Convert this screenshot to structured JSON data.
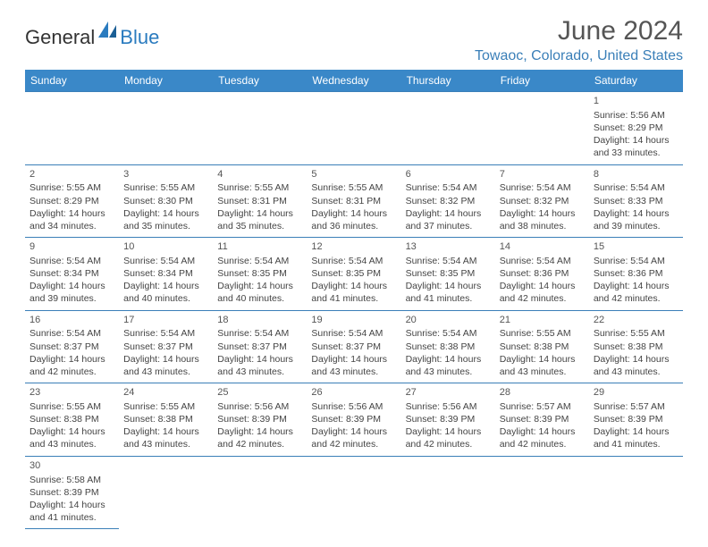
{
  "logo": {
    "text1": "General",
    "text2": "Blue"
  },
  "title": "June 2024",
  "location": "Towaoc, Colorado, United States",
  "day_headers": [
    "Sunday",
    "Monday",
    "Tuesday",
    "Wednesday",
    "Thursday",
    "Friday",
    "Saturday"
  ],
  "colors": {
    "header_bg": "#3a88c8",
    "header_fg": "#ffffff",
    "accent": "#3a7fb8",
    "text": "#444444",
    "title": "#555555"
  },
  "weeks": [
    [
      null,
      null,
      null,
      null,
      null,
      null,
      {
        "n": "1",
        "sr": "Sunrise: 5:56 AM",
        "ss": "Sunset: 8:29 PM",
        "d1": "Daylight: 14 hours",
        "d2": "and 33 minutes."
      }
    ],
    [
      {
        "n": "2",
        "sr": "Sunrise: 5:55 AM",
        "ss": "Sunset: 8:29 PM",
        "d1": "Daylight: 14 hours",
        "d2": "and 34 minutes."
      },
      {
        "n": "3",
        "sr": "Sunrise: 5:55 AM",
        "ss": "Sunset: 8:30 PM",
        "d1": "Daylight: 14 hours",
        "d2": "and 35 minutes."
      },
      {
        "n": "4",
        "sr": "Sunrise: 5:55 AM",
        "ss": "Sunset: 8:31 PM",
        "d1": "Daylight: 14 hours",
        "d2": "and 35 minutes."
      },
      {
        "n": "5",
        "sr": "Sunrise: 5:55 AM",
        "ss": "Sunset: 8:31 PM",
        "d1": "Daylight: 14 hours",
        "d2": "and 36 minutes."
      },
      {
        "n": "6",
        "sr": "Sunrise: 5:54 AM",
        "ss": "Sunset: 8:32 PM",
        "d1": "Daylight: 14 hours",
        "d2": "and 37 minutes."
      },
      {
        "n": "7",
        "sr": "Sunrise: 5:54 AM",
        "ss": "Sunset: 8:32 PM",
        "d1": "Daylight: 14 hours",
        "d2": "and 38 minutes."
      },
      {
        "n": "8",
        "sr": "Sunrise: 5:54 AM",
        "ss": "Sunset: 8:33 PM",
        "d1": "Daylight: 14 hours",
        "d2": "and 39 minutes."
      }
    ],
    [
      {
        "n": "9",
        "sr": "Sunrise: 5:54 AM",
        "ss": "Sunset: 8:34 PM",
        "d1": "Daylight: 14 hours",
        "d2": "and 39 minutes."
      },
      {
        "n": "10",
        "sr": "Sunrise: 5:54 AM",
        "ss": "Sunset: 8:34 PM",
        "d1": "Daylight: 14 hours",
        "d2": "and 40 minutes."
      },
      {
        "n": "11",
        "sr": "Sunrise: 5:54 AM",
        "ss": "Sunset: 8:35 PM",
        "d1": "Daylight: 14 hours",
        "d2": "and 40 minutes."
      },
      {
        "n": "12",
        "sr": "Sunrise: 5:54 AM",
        "ss": "Sunset: 8:35 PM",
        "d1": "Daylight: 14 hours",
        "d2": "and 41 minutes."
      },
      {
        "n": "13",
        "sr": "Sunrise: 5:54 AM",
        "ss": "Sunset: 8:35 PM",
        "d1": "Daylight: 14 hours",
        "d2": "and 41 minutes."
      },
      {
        "n": "14",
        "sr": "Sunrise: 5:54 AM",
        "ss": "Sunset: 8:36 PM",
        "d1": "Daylight: 14 hours",
        "d2": "and 42 minutes."
      },
      {
        "n": "15",
        "sr": "Sunrise: 5:54 AM",
        "ss": "Sunset: 8:36 PM",
        "d1": "Daylight: 14 hours",
        "d2": "and 42 minutes."
      }
    ],
    [
      {
        "n": "16",
        "sr": "Sunrise: 5:54 AM",
        "ss": "Sunset: 8:37 PM",
        "d1": "Daylight: 14 hours",
        "d2": "and 42 minutes."
      },
      {
        "n": "17",
        "sr": "Sunrise: 5:54 AM",
        "ss": "Sunset: 8:37 PM",
        "d1": "Daylight: 14 hours",
        "d2": "and 43 minutes."
      },
      {
        "n": "18",
        "sr": "Sunrise: 5:54 AM",
        "ss": "Sunset: 8:37 PM",
        "d1": "Daylight: 14 hours",
        "d2": "and 43 minutes."
      },
      {
        "n": "19",
        "sr": "Sunrise: 5:54 AM",
        "ss": "Sunset: 8:37 PM",
        "d1": "Daylight: 14 hours",
        "d2": "and 43 minutes."
      },
      {
        "n": "20",
        "sr": "Sunrise: 5:54 AM",
        "ss": "Sunset: 8:38 PM",
        "d1": "Daylight: 14 hours",
        "d2": "and 43 minutes."
      },
      {
        "n": "21",
        "sr": "Sunrise: 5:55 AM",
        "ss": "Sunset: 8:38 PM",
        "d1": "Daylight: 14 hours",
        "d2": "and 43 minutes."
      },
      {
        "n": "22",
        "sr": "Sunrise: 5:55 AM",
        "ss": "Sunset: 8:38 PM",
        "d1": "Daylight: 14 hours",
        "d2": "and 43 minutes."
      }
    ],
    [
      {
        "n": "23",
        "sr": "Sunrise: 5:55 AM",
        "ss": "Sunset: 8:38 PM",
        "d1": "Daylight: 14 hours",
        "d2": "and 43 minutes."
      },
      {
        "n": "24",
        "sr": "Sunrise: 5:55 AM",
        "ss": "Sunset: 8:38 PM",
        "d1": "Daylight: 14 hours",
        "d2": "and 43 minutes."
      },
      {
        "n": "25",
        "sr": "Sunrise: 5:56 AM",
        "ss": "Sunset: 8:39 PM",
        "d1": "Daylight: 14 hours",
        "d2": "and 42 minutes."
      },
      {
        "n": "26",
        "sr": "Sunrise: 5:56 AM",
        "ss": "Sunset: 8:39 PM",
        "d1": "Daylight: 14 hours",
        "d2": "and 42 minutes."
      },
      {
        "n": "27",
        "sr": "Sunrise: 5:56 AM",
        "ss": "Sunset: 8:39 PM",
        "d1": "Daylight: 14 hours",
        "d2": "and 42 minutes."
      },
      {
        "n": "28",
        "sr": "Sunrise: 5:57 AM",
        "ss": "Sunset: 8:39 PM",
        "d1": "Daylight: 14 hours",
        "d2": "and 42 minutes."
      },
      {
        "n": "29",
        "sr": "Sunrise: 5:57 AM",
        "ss": "Sunset: 8:39 PM",
        "d1": "Daylight: 14 hours",
        "d2": "and 41 minutes."
      }
    ],
    [
      {
        "n": "30",
        "sr": "Sunrise: 5:58 AM",
        "ss": "Sunset: 8:39 PM",
        "d1": "Daylight: 14 hours",
        "d2": "and 41 minutes."
      },
      null,
      null,
      null,
      null,
      null,
      null
    ]
  ]
}
